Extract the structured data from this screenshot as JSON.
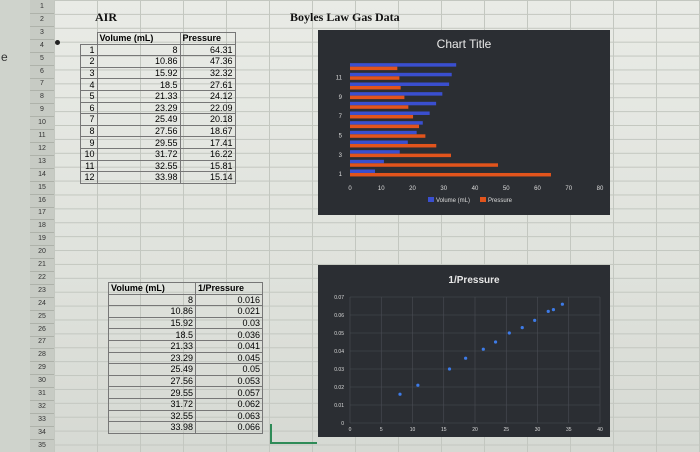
{
  "sheet": {
    "edge_text": "e",
    "col_header_a": "AIR",
    "title": "Boyles Law Gas Data",
    "row_numbers": [
      "1",
      "2",
      "3",
      "4",
      "5",
      "6",
      "7",
      "8",
      "9",
      "10",
      "11",
      "12",
      "13",
      "14",
      "15",
      "16",
      "17",
      "18",
      "19",
      "20",
      "21",
      "22",
      "23",
      "24",
      "25",
      "26",
      "27",
      "28",
      "29",
      "30",
      "31",
      "32",
      "33",
      "34",
      "35"
    ],
    "table1": {
      "headers": [
        "Volume (mL)",
        "Pressure"
      ],
      "index": [
        "1",
        "2",
        "3",
        "4",
        "5",
        "6",
        "7",
        "8",
        "9",
        "10",
        "11",
        "12"
      ],
      "volume": [
        "8",
        "10.86",
        "15.92",
        "18.5",
        "21.33",
        "23.29",
        "25.49",
        "27.56",
        "29.55",
        "31.72",
        "32.55",
        "33.98"
      ],
      "pressure": [
        "64.31",
        "47.36",
        "32.32",
        "27.61",
        "24.12",
        "22.09",
        "20.18",
        "18.67",
        "17.41",
        "16.22",
        "15.81",
        "15.14"
      ]
    },
    "table2": {
      "headers": [
        "Volume (mL)",
        "1/Pressure"
      ],
      "volume": [
        "8",
        "10.86",
        "15.92",
        "18.5",
        "21.33",
        "23.29",
        "25.49",
        "27.56",
        "29.55",
        "31.72",
        "32.55",
        "33.98"
      ],
      "inv_pressure": [
        "0.016",
        "0.021",
        "0.03",
        "0.036",
        "0.041",
        "0.045",
        "0.05",
        "0.053",
        "0.057",
        "0.062",
        "0.063",
        "0.066"
      ]
    }
  },
  "chart_data": [
    {
      "type": "bar",
      "orientation": "horizontal",
      "title": "Chart Title",
      "categories": [
        "1",
        "2",
        "3",
        "4",
        "5",
        "6",
        "7",
        "8",
        "9",
        "10",
        "11",
        "12"
      ],
      "series": [
        {
          "name": "Volume (mL)",
          "values": [
            8,
            10.86,
            15.92,
            18.5,
            21.33,
            23.29,
            25.49,
            27.56,
            29.55,
            31.72,
            32.55,
            33.98
          ]
        },
        {
          "name": "Pressure",
          "values": [
            64.31,
            47.36,
            32.32,
            27.61,
            24.12,
            22.09,
            20.18,
            18.67,
            17.41,
            16.22,
            15.81,
            15.14
          ]
        }
      ],
      "y_tick_labels": [
        "1",
        "3",
        "5",
        "7",
        "9",
        "11"
      ],
      "x_tick_labels": [
        "0",
        "10",
        "20",
        "30",
        "40",
        "50",
        "60",
        "70",
        "80"
      ],
      "xlim": [
        0,
        80
      ],
      "legend": "bottom",
      "colors": {
        "background": "#2b2e33",
        "volume": "#3a4fd0",
        "pressure": "#e2541c"
      }
    },
    {
      "type": "scatter",
      "title": "1/Pressure",
      "x": [
        8,
        10.86,
        15.92,
        18.5,
        21.33,
        23.29,
        25.49,
        27.56,
        29.55,
        31.72,
        32.55,
        33.98
      ],
      "y": [
        0.016,
        0.021,
        0.03,
        0.036,
        0.041,
        0.045,
        0.05,
        0.053,
        0.057,
        0.062,
        0.063,
        0.066
      ],
      "x_tick_labels": [
        "0",
        "5",
        "10",
        "15",
        "20",
        "25",
        "30",
        "35",
        "40"
      ],
      "y_tick_labels": [
        "0",
        "0.01",
        "0.02",
        "0.03",
        "0.04",
        "0.05",
        "0.06",
        "0.07"
      ],
      "xlim": [
        0,
        40
      ],
      "ylim": [
        0,
        0.07
      ],
      "grid": true,
      "colors": {
        "background": "#2b2e33",
        "point": "#3d7be8",
        "grid": "#4a4e55"
      }
    }
  ]
}
